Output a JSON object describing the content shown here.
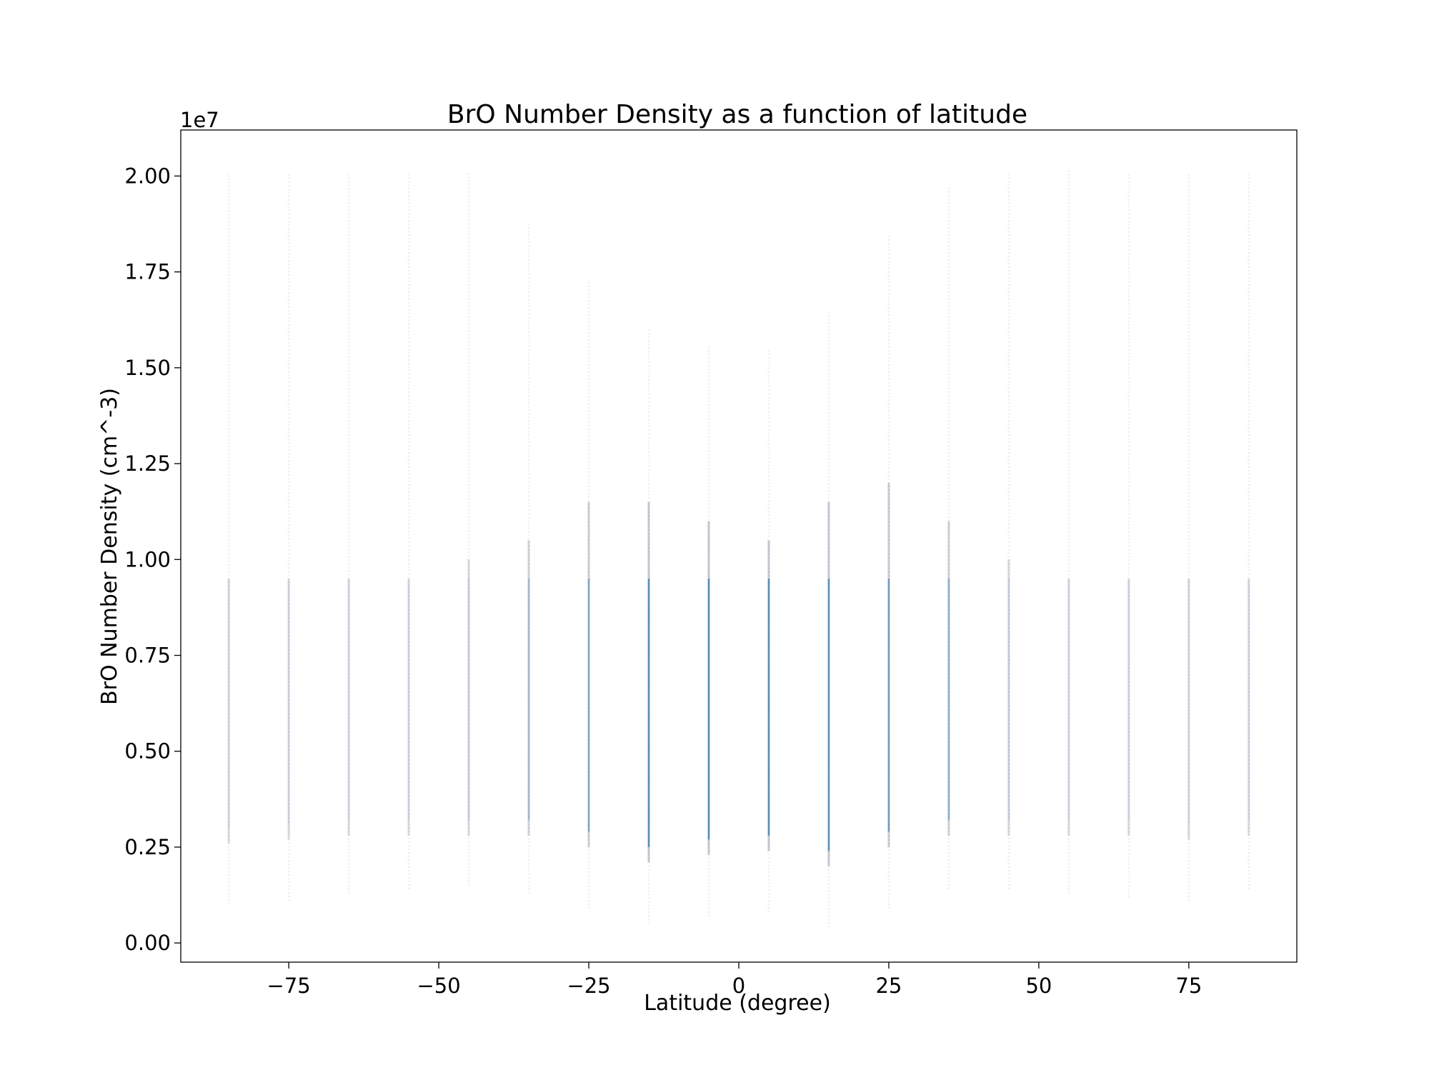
{
  "chart_data": {
    "type": "scatter",
    "title": "BrO Number Density as a function of latitude",
    "xlabel": "Latitude (degree)",
    "ylabel": "BrO Number Density (cm^-3)",
    "y_offset_text": "1e7",
    "xlim": [
      -93,
      93
    ],
    "ylim": [
      -0.05,
      2.12
    ],
    "y_scale_factor": 10000000,
    "x_ticks": [
      -75,
      -50,
      -25,
      0,
      25,
      50,
      75
    ],
    "x_tick_labels": [
      "−75",
      "−50",
      "−25",
      "0",
      "25",
      "50",
      "75"
    ],
    "y_ticks": [
      0.0,
      0.25,
      0.5,
      0.75,
      1.0,
      1.25,
      1.5,
      1.75,
      2.0
    ],
    "y_tick_labels": [
      "0.00",
      "0.25",
      "0.50",
      "0.75",
      "1.00",
      "1.25",
      "1.50",
      "1.75",
      "2.00"
    ],
    "grid": false,
    "legend": "none",
    "point_color": "#1f77b4",
    "series": [
      {
        "x": [
          -85,
          -75,
          -65,
          -55,
          -45,
          -35,
          -25,
          -15,
          -5,
          5,
          15,
          25,
          35,
          45,
          55,
          65,
          75,
          85
        ],
        "y_min": [
          0.1,
          0.11,
          0.13,
          0.14,
          0.15,
          0.13,
          0.09,
          0.05,
          0.07,
          0.08,
          0.04,
          0.09,
          0.14,
          0.14,
          0.13,
          0.12,
          0.11,
          0.14
        ],
        "y_max": [
          2.01,
          2.01,
          2.01,
          2.01,
          2.01,
          1.88,
          1.73,
          1.6,
          1.56,
          1.55,
          1.65,
          1.85,
          1.97,
          2.01,
          2.02,
          2.01,
          2.01,
          2.01
        ],
        "dense_top": [
          0.95,
          0.95,
          0.95,
          0.95,
          1.0,
          1.05,
          1.15,
          1.15,
          1.1,
          1.05,
          1.15,
          1.2,
          1.1,
          1.0,
          0.95,
          0.95,
          0.95,
          0.95
        ],
        "density": [
          0.35,
          0.35,
          0.35,
          0.35,
          0.4,
          0.55,
          0.7,
          0.95,
          0.95,
          0.95,
          0.9,
          0.8,
          0.65,
          0.4,
          0.35,
          0.35,
          0.35,
          0.35
        ]
      }
    ]
  }
}
